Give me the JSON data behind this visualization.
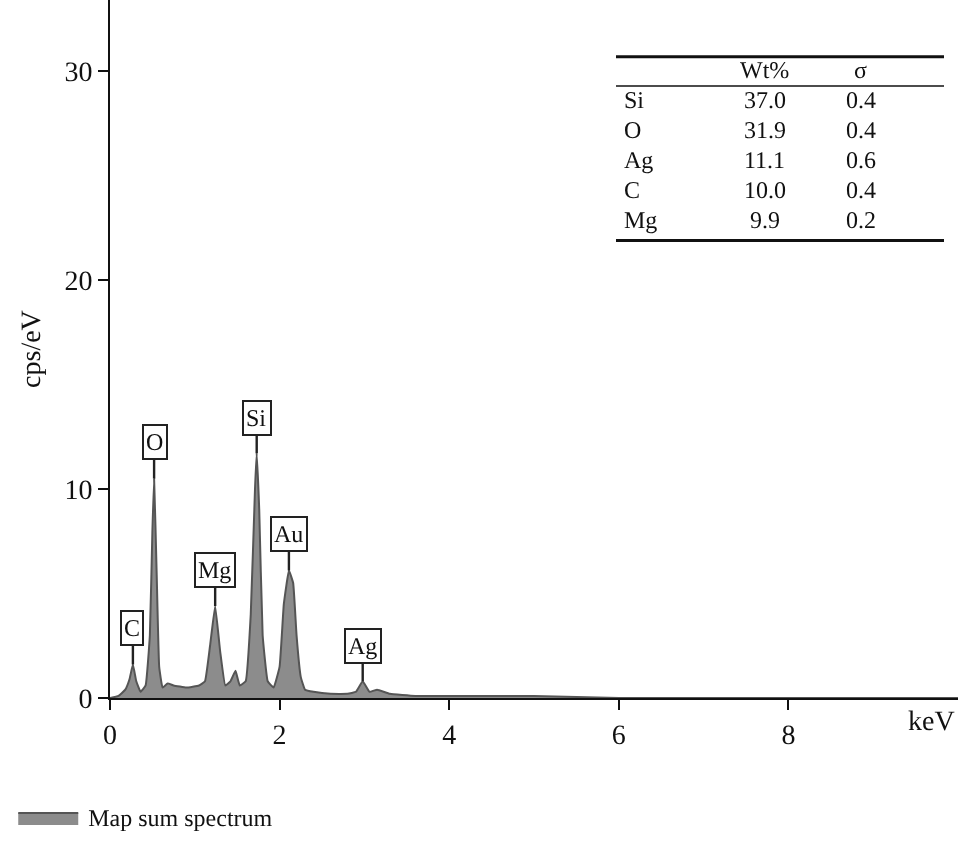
{
  "chart_data": {
    "type": "area",
    "xlabel": "keV",
    "ylabel": "cps/eV",
    "xlim": [
      0,
      10
    ],
    "ylim": [
      0,
      33.4
    ],
    "xticks": [
      0,
      2,
      4,
      6,
      8
    ],
    "yticks": [
      0,
      10,
      20,
      30
    ],
    "legend": "bottom left",
    "series": [
      {
        "name": "Map sum spectrum",
        "color": "#8c8c8c",
        "x": [
          0,
          0.1,
          0.18,
          0.23,
          0.27,
          0.31,
          0.36,
          0.42,
          0.47,
          0.5,
          0.52,
          0.55,
          0.58,
          0.62,
          0.68,
          0.75,
          0.9,
          1.05,
          1.12,
          1.18,
          1.24,
          1.3,
          1.36,
          1.42,
          1.48,
          1.53,
          1.6,
          1.66,
          1.71,
          1.73,
          1.76,
          1.8,
          1.86,
          1.93,
          2.0,
          2.05,
          2.11,
          2.16,
          2.2,
          2.25,
          2.3,
          2.4,
          2.6,
          2.8,
          2.9,
          2.98,
          3.06,
          3.15,
          3.3,
          3.6,
          4,
          5,
          6,
          8,
          10
        ],
        "values": [
          0,
          0.1,
          0.4,
          0.9,
          1.6,
          0.8,
          0.3,
          0.6,
          3,
          8,
          10.5,
          6,
          1.5,
          0.5,
          0.7,
          0.6,
          0.5,
          0.6,
          0.8,
          2.5,
          4.4,
          2.2,
          0.6,
          0.8,
          1.3,
          0.6,
          0.8,
          4,
          10,
          11.7,
          9,
          3,
          0.8,
          0.5,
          1.5,
          4.5,
          6.1,
          5.5,
          3,
          1,
          0.4,
          0.3,
          0.2,
          0.2,
          0.3,
          0.8,
          0.3,
          0.4,
          0.2,
          0.1,
          0.1,
          0.1,
          0,
          0,
          0
        ]
      }
    ],
    "annotations": [
      {
        "text": "C",
        "x": 0.27,
        "y": 1.6
      },
      {
        "text": "O",
        "x": 0.52,
        "y": 10.5
      },
      {
        "text": "Mg",
        "x": 1.24,
        "y": 4.4
      },
      {
        "text": "Si",
        "x": 1.73,
        "y": 11.7
      },
      {
        "text": "Au",
        "x": 2.11,
        "y": 6.1
      },
      {
        "text": "Ag",
        "x": 2.98,
        "y": 0.8
      },
      "Wt%",
      "σ",
      "Si",
      "37.0",
      "0.4",
      "O",
      "31.9",
      "0.4",
      "Ag",
      "11.1",
      "0.6",
      "C",
      "10.0",
      "0.4",
      "Mg",
      "9.9",
      "0.2"
    ]
  }
}
